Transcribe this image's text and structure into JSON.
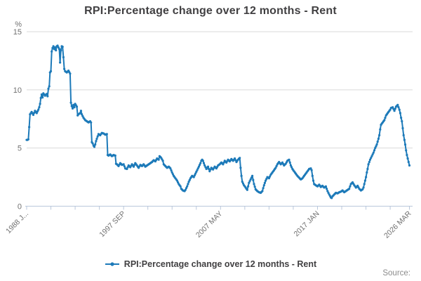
{
  "header": {
    "title": "RPI:Percentage change over 12 months - Rent"
  },
  "legend": {
    "label": "RPI:Percentage change over 12 months - Rent"
  },
  "footer": {
    "source_label": "Source:"
  },
  "colors": {
    "line": "#1d7ab9",
    "grid": "#d9d9d9",
    "axis": "#b9c7db",
    "tick_text": "#707070",
    "text_dark": "#414042"
  },
  "chart_data": {
    "type": "line",
    "title": "RPI:Percentage change over 12 months - Rent",
    "unit_label": "%",
    "y_axis": {
      "ticks": [
        0,
        5,
        10,
        15
      ],
      "range": [
        0,
        15
      ],
      "grid": "horizontal"
    },
    "x_axis": {
      "start": "1988 JAN",
      "end": "2026 MAR",
      "months_total": 458,
      "tick_interval_months": 29,
      "tick_months": [
        0,
        29,
        58,
        87,
        116,
        145,
        174,
        203,
        232,
        261,
        290,
        319,
        348,
        377,
        406,
        435,
        458
      ],
      "tick_labels": [
        {
          "m": 0,
          "label": "1988 J..."
        },
        {
          "m": 116,
          "label": "1997 SEP"
        },
        {
          "m": 232,
          "label": "2007 MAY"
        },
        {
          "m": 348,
          "label": "2017 JAN"
        },
        {
          "m": 458,
          "label": "2026 MAR"
        }
      ]
    },
    "series": [
      {
        "name": "RPI:Percentage change over 12 months - Rent",
        "frequency": "monthly",
        "anchors_note": "pairs of [months since 1988 JAN, percent]; monthly values interpolated between anchors",
        "anchors": [
          [
            0,
            5.7
          ],
          [
            1,
            5.7
          ],
          [
            2,
            5.75
          ],
          [
            3,
            6.8
          ],
          [
            4,
            7.9
          ],
          [
            6,
            8.1
          ],
          [
            8,
            7.85
          ],
          [
            10,
            8.2
          ],
          [
            12,
            8.0
          ],
          [
            14,
            8.3
          ],
          [
            15,
            8.5
          ],
          [
            16,
            8.8
          ],
          [
            17,
            9.3
          ],
          [
            18,
            9.6
          ],
          [
            19,
            9.35
          ],
          [
            20,
            9.7
          ],
          [
            22,
            9.5
          ],
          [
            24,
            9.65
          ],
          [
            25,
            9.45
          ],
          [
            26,
            10.1
          ],
          [
            27,
            10.3
          ],
          [
            28,
            11.5
          ],
          [
            29,
            11.6
          ],
          [
            30,
            13.3
          ],
          [
            31,
            13.6
          ],
          [
            32,
            13.75
          ],
          [
            33,
            13.5
          ],
          [
            34,
            13.65
          ],
          [
            35,
            13.4
          ],
          [
            36,
            13.75
          ],
          [
            37,
            13.8
          ],
          [
            39,
            13.5
          ],
          [
            40,
            12.35
          ],
          [
            41,
            13.4
          ],
          [
            42,
            13.75
          ],
          [
            43,
            13.7
          ],
          [
            44,
            12.8
          ],
          [
            45,
            11.8
          ],
          [
            46,
            11.6
          ],
          [
            48,
            11.5
          ],
          [
            50,
            11.65
          ],
          [
            52,
            11.4
          ],
          [
            53,
            8.9
          ],
          [
            54,
            8.6
          ],
          [
            55,
            8.4
          ],
          [
            56,
            8.7
          ],
          [
            57,
            8.5
          ],
          [
            58,
            8.8
          ],
          [
            60,
            8.55
          ],
          [
            61,
            7.8
          ],
          [
            62,
            7.9
          ],
          [
            64,
            8.0
          ],
          [
            65,
            8.2
          ],
          [
            66,
            7.9
          ],
          [
            68,
            7.6
          ],
          [
            70,
            7.4
          ],
          [
            72,
            7.3
          ],
          [
            74,
            7.2
          ],
          [
            76,
            7.3
          ],
          [
            77,
            7.2
          ],
          [
            78,
            5.5
          ],
          [
            79,
            5.4
          ],
          [
            80,
            5.2
          ],
          [
            81,
            5.1
          ],
          [
            82,
            5.3
          ],
          [
            83,
            5.6
          ],
          [
            84,
            5.8
          ],
          [
            85,
            6.0
          ],
          [
            86,
            6.2
          ],
          [
            88,
            6.1
          ],
          [
            90,
            6.3
          ],
          [
            92,
            6.25
          ],
          [
            94,
            6.15
          ],
          [
            96,
            6.2
          ],
          [
            97,
            4.4
          ],
          [
            98,
            4.35
          ],
          [
            100,
            4.45
          ],
          [
            102,
            4.3
          ],
          [
            104,
            4.4
          ],
          [
            106,
            4.35
          ],
          [
            107,
            3.65
          ],
          [
            108,
            3.6
          ],
          [
            110,
            3.45
          ],
          [
            112,
            3.7
          ],
          [
            114,
            3.55
          ],
          [
            116,
            3.6
          ],
          [
            118,
            3.25
          ],
          [
            120,
            3.2
          ],
          [
            122,
            3.5
          ],
          [
            124,
            3.35
          ],
          [
            126,
            3.6
          ],
          [
            128,
            3.4
          ],
          [
            130,
            3.7
          ],
          [
            132,
            3.5
          ],
          [
            134,
            3.3
          ],
          [
            136,
            3.55
          ],
          [
            138,
            3.45
          ],
          [
            140,
            3.6
          ],
          [
            142,
            3.4
          ],
          [
            144,
            3.5
          ],
          [
            146,
            3.6
          ],
          [
            148,
            3.7
          ],
          [
            150,
            3.8
          ],
          [
            152,
            3.95
          ],
          [
            154,
            3.85
          ],
          [
            156,
            4.1
          ],
          [
            158,
            4.0
          ],
          [
            159,
            4.3
          ],
          [
            161,
            4.15
          ],
          [
            163,
            3.9
          ],
          [
            164,
            3.6
          ],
          [
            166,
            3.45
          ],
          [
            168,
            3.3
          ],
          [
            170,
            3.4
          ],
          [
            172,
            3.25
          ],
          [
            174,
            2.9
          ],
          [
            176,
            2.6
          ],
          [
            178,
            2.4
          ],
          [
            180,
            2.2
          ],
          [
            182,
            1.9
          ],
          [
            184,
            1.7
          ],
          [
            185,
            1.5
          ],
          [
            187,
            1.35
          ],
          [
            189,
            1.3
          ],
          [
            190,
            1.4
          ],
          [
            192,
            1.7
          ],
          [
            194,
            2.1
          ],
          [
            196,
            2.4
          ],
          [
            198,
            2.6
          ],
          [
            200,
            2.5
          ],
          [
            202,
            2.8
          ],
          [
            204,
            3.1
          ],
          [
            206,
            3.4
          ],
          [
            208,
            3.7
          ],
          [
            209,
            3.9
          ],
          [
            210,
            4.0
          ],
          [
            211,
            3.9
          ],
          [
            213,
            3.5
          ],
          [
            215,
            3.2
          ],
          [
            217,
            3.4
          ],
          [
            219,
            3.0
          ],
          [
            221,
            3.3
          ],
          [
            223,
            3.15
          ],
          [
            225,
            3.4
          ],
          [
            227,
            3.25
          ],
          [
            229,
            3.5
          ],
          [
            231,
            3.6
          ],
          [
            233,
            3.75
          ],
          [
            235,
            3.6
          ],
          [
            237,
            3.9
          ],
          [
            239,
            3.75
          ],
          [
            241,
            4.0
          ],
          [
            243,
            3.85
          ],
          [
            245,
            4.05
          ],
          [
            247,
            3.9
          ],
          [
            249,
            4.1
          ],
          [
            251,
            3.8
          ],
          [
            253,
            4.0
          ],
          [
            255,
            4.15
          ],
          [
            256,
            3.3
          ],
          [
            257,
            2.6
          ],
          [
            258,
            2.1
          ],
          [
            260,
            1.8
          ],
          [
            262,
            1.6
          ],
          [
            264,
            1.4
          ],
          [
            266,
            2.0
          ],
          [
            268,
            2.3
          ],
          [
            270,
            2.6
          ],
          [
            272,
            1.9
          ],
          [
            274,
            1.45
          ],
          [
            276,
            1.3
          ],
          [
            278,
            1.2
          ],
          [
            280,
            1.15
          ],
          [
            282,
            1.3
          ],
          [
            284,
            1.8
          ],
          [
            286,
            2.2
          ],
          [
            288,
            2.5
          ],
          [
            290,
            2.4
          ],
          [
            292,
            2.7
          ],
          [
            294,
            2.9
          ],
          [
            296,
            3.1
          ],
          [
            298,
            3.3
          ],
          [
            300,
            3.6
          ],
          [
            302,
            3.8
          ],
          [
            304,
            3.6
          ],
          [
            306,
            3.75
          ],
          [
            308,
            3.5
          ],
          [
            310,
            3.65
          ],
          [
            312,
            3.9
          ],
          [
            314,
            4.0
          ],
          [
            316,
            3.5
          ],
          [
            318,
            3.2
          ],
          [
            320,
            3.0
          ],
          [
            322,
            2.8
          ],
          [
            324,
            2.6
          ],
          [
            326,
            2.45
          ],
          [
            328,
            2.3
          ],
          [
            330,
            2.4
          ],
          [
            332,
            2.6
          ],
          [
            334,
            2.8
          ],
          [
            336,
            3.0
          ],
          [
            338,
            3.2
          ],
          [
            340,
            3.25
          ],
          [
            341,
            3.1
          ],
          [
            342,
            2.6
          ],
          [
            343,
            2.2
          ],
          [
            344,
            1.9
          ],
          [
            346,
            1.8
          ],
          [
            348,
            1.7
          ],
          [
            350,
            1.85
          ],
          [
            352,
            1.65
          ],
          [
            354,
            1.75
          ],
          [
            356,
            1.6
          ],
          [
            358,
            1.7
          ],
          [
            360,
            1.3
          ],
          [
            362,
            1.0
          ],
          [
            364,
            0.75
          ],
          [
            365,
            0.7
          ],
          [
            366,
            0.85
          ],
          [
            368,
            1.0
          ],
          [
            370,
            1.15
          ],
          [
            372,
            1.1
          ],
          [
            374,
            1.2
          ],
          [
            376,
            1.25
          ],
          [
            378,
            1.35
          ],
          [
            380,
            1.2
          ],
          [
            382,
            1.3
          ],
          [
            384,
            1.4
          ],
          [
            386,
            1.5
          ],
          [
            388,
            1.9
          ],
          [
            390,
            2.05
          ],
          [
            392,
            1.8
          ],
          [
            394,
            1.6
          ],
          [
            396,
            1.75
          ],
          [
            398,
            1.5
          ],
          [
            400,
            1.35
          ],
          [
            402,
            1.45
          ],
          [
            403,
            1.6
          ],
          [
            404,
            1.9
          ],
          [
            405,
            2.2
          ],
          [
            406,
            2.5
          ],
          [
            407,
            2.9
          ],
          [
            408,
            3.2
          ],
          [
            409,
            3.6
          ],
          [
            411,
            4.0
          ],
          [
            413,
            4.3
          ],
          [
            415,
            4.6
          ],
          [
            417,
            5.0
          ],
          [
            419,
            5.3
          ],
          [
            421,
            5.8
          ],
          [
            422,
            6.1
          ],
          [
            423,
            6.6
          ],
          [
            424,
            7.0
          ],
          [
            426,
            7.2
          ],
          [
            428,
            7.4
          ],
          [
            430,
            7.8
          ],
          [
            432,
            8.0
          ],
          [
            434,
            8.2
          ],
          [
            435,
            8.3
          ],
          [
            436,
            8.45
          ],
          [
            438,
            8.5
          ],
          [
            440,
            8.2
          ],
          [
            442,
            8.55
          ],
          [
            444,
            8.7
          ],
          [
            446,
            8.3
          ],
          [
            447,
            8.0
          ],
          [
            448,
            7.6
          ],
          [
            449,
            7.3
          ],
          [
            450,
            6.7
          ],
          [
            451,
            6.1
          ],
          [
            452,
            5.7
          ],
          [
            453,
            5.3
          ],
          [
            454,
            4.8
          ],
          [
            455,
            4.4
          ],
          [
            456,
            4.1
          ],
          [
            457,
            3.8
          ],
          [
            458,
            3.5
          ]
        ]
      }
    ]
  }
}
